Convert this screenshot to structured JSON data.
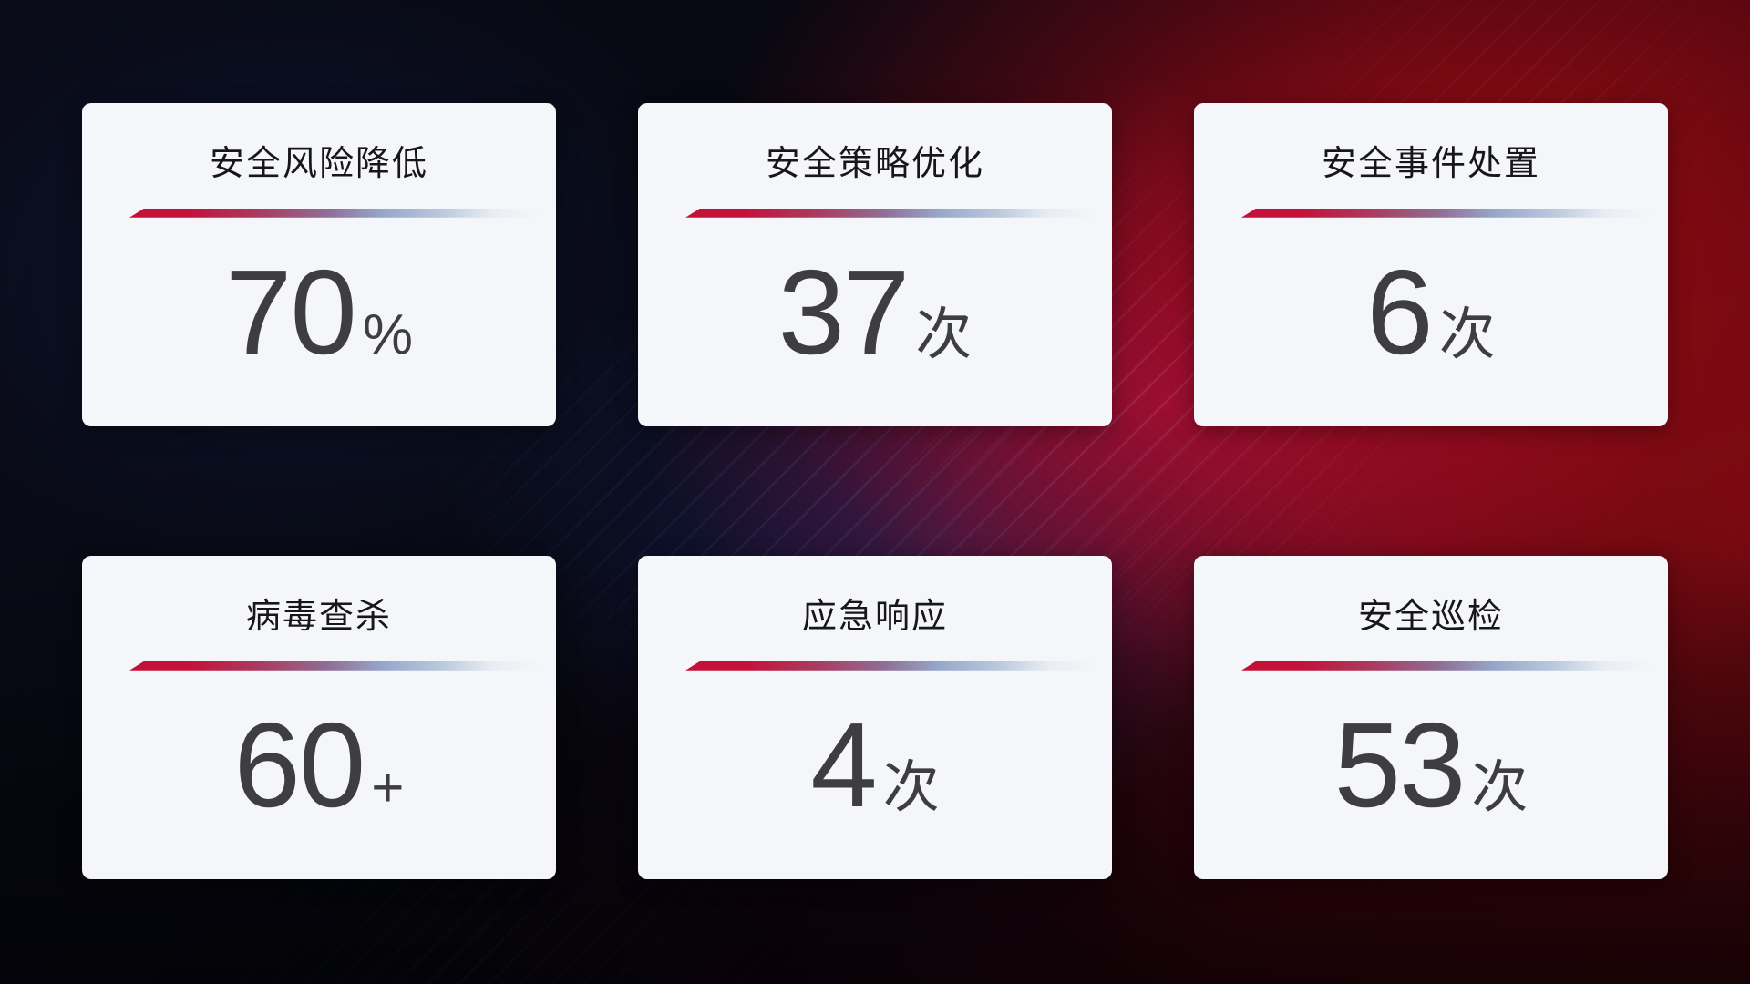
{
  "cards": [
    {
      "title": "安全风险降低",
      "value": "70",
      "unit": "%"
    },
    {
      "title": "安全策略优化",
      "value": "37",
      "unit": "次"
    },
    {
      "title": "安全事件处置",
      "value": "6",
      "unit": "次"
    },
    {
      "title": "病毒查杀",
      "value": "60",
      "unit": "+"
    },
    {
      "title": "应急响应",
      "value": "4",
      "unit": "次"
    },
    {
      "title": "安全巡检",
      "value": "53",
      "unit": "次"
    }
  ],
  "colors": {
    "card_background": "#f5f6f9",
    "title_text": "#17171b",
    "value_text": "#3d3d42",
    "accent_red": "#c41139",
    "accent_blue_gray": "#97a9cb",
    "background_red": "#8c0a12",
    "background_navy": "#0a0d1c"
  }
}
